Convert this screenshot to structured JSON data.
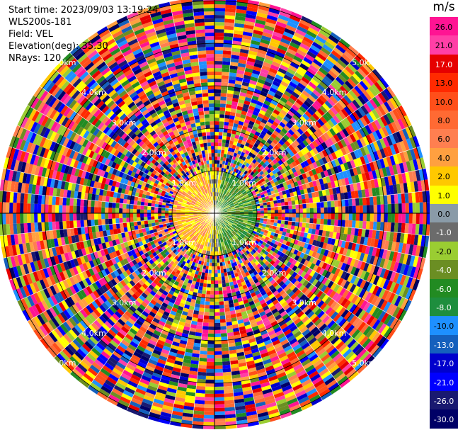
{
  "header": {
    "start_time": "Start time: 2023/09/03 13:19:24",
    "instrument": "WLS200s-181",
    "field": "Field: VEL",
    "elevation": "Elevation(deg): 35.30",
    "nrays": "NRays: 120"
  },
  "chart_data": {
    "type": "heatmap",
    "subtype": "polar-ppi",
    "field": "VEL",
    "units": "m/s",
    "nrays": 120,
    "elevation_deg": 35.3,
    "range_labels": [
      "1.0km",
      "2.0km",
      "3.0km",
      "4.0km",
      "5.0km"
    ],
    "colorbar": {
      "title": "m/s",
      "ticks": [
        "26.0",
        "21.0",
        "17.0",
        "13.0",
        "10.0",
        "8.0",
        "6.0",
        "4.0",
        "2.0",
        "1.0",
        "0.0",
        "-1.0",
        "-2.0",
        "-4.0",
        "-6.0",
        "-8.0",
        "-10.0",
        "-13.0",
        "-17.0",
        "-21.0",
        "-26.0",
        "-30.0"
      ],
      "colors": [
        "#ff1493",
        "#ff3fa6",
        "#e60000",
        "#ff2a00",
        "#ff4f1a",
        "#ff6a33",
        "#ff7f50",
        "#ffa040",
        "#ffc800",
        "#ffff00",
        "#8a9ba8",
        "#6b6b6b",
        "#9acd32",
        "#6b8e23",
        "#228b22",
        "#1e8e3e",
        "#1e90ff",
        "#1560bd",
        "#0000cd",
        "#0000ff",
        "#191970",
        "#000066"
      ]
    }
  }
}
